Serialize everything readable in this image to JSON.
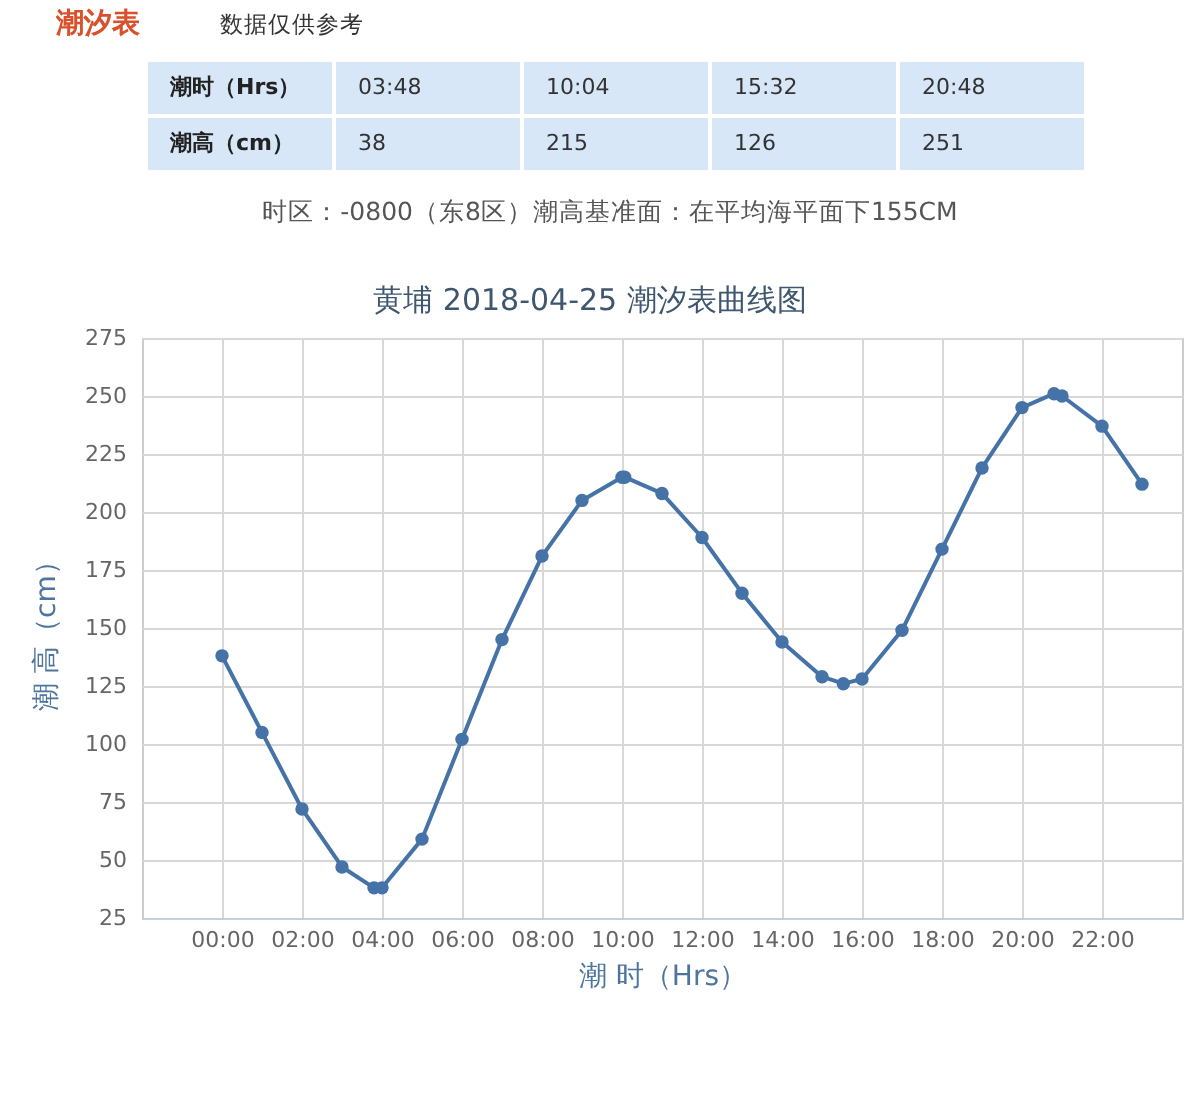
{
  "chart_data": {
    "type": "line",
    "title": "黄埔 2018-04-25 潮汐表曲线图",
    "xlabel": "潮 时（Hrs）",
    "ylabel": "潮 高（cm）",
    "annotations": [
      "潮汐表",
      "数据仅供参考",
      "潮时（Hrs）",
      "03:48",
      "10:04",
      "15:32",
      "20:48",
      "潮高（cm）",
      "38",
      "215",
      "126",
      "251",
      "时区：-0800（东8区）潮高基准面：在平均海平面下155CM"
    ],
    "x": [
      0,
      1,
      2,
      3,
      3.8,
      4,
      5,
      6,
      7,
      8,
      9,
      10,
      10.067,
      11,
      12,
      13,
      14,
      15,
      15.533,
      16,
      17,
      18,
      19,
      20,
      20.8,
      21,
      22,
      23
    ],
    "values": [
      138,
      105,
      72,
      47,
      38,
      38,
      59,
      102,
      145,
      181,
      205,
      215,
      215,
      208,
      189,
      165,
      144,
      129,
      126,
      128,
      149,
      184,
      219,
      245,
      251,
      250,
      237,
      212
    ],
    "color": "#4572a7",
    "marker": "circle",
    "line_style": "solid",
    "grid": true,
    "xlim": [
      -2,
      24
    ],
    "xticks": [
      {
        "value": 0,
        "label": "00:00"
      },
      {
        "value": 2,
        "label": "02:00"
      },
      {
        "value": 4,
        "label": "04:00"
      },
      {
        "value": 6,
        "label": "06:00"
      },
      {
        "value": 8,
        "label": "08:00"
      },
      {
        "value": 10,
        "label": "10:00"
      },
      {
        "value": 12,
        "label": "12:00"
      },
      {
        "value": 14,
        "label": "14:00"
      },
      {
        "value": 16,
        "label": "16:00"
      },
      {
        "value": 18,
        "label": "18:00"
      },
      {
        "value": 20,
        "label": "20:00"
      },
      {
        "value": 22,
        "label": "22:00"
      }
    ],
    "ylim": [
      25,
      275
    ],
    "yticks": [
      25,
      50,
      75,
      100,
      125,
      150,
      175,
      200,
      225,
      250,
      275
    ]
  }
}
